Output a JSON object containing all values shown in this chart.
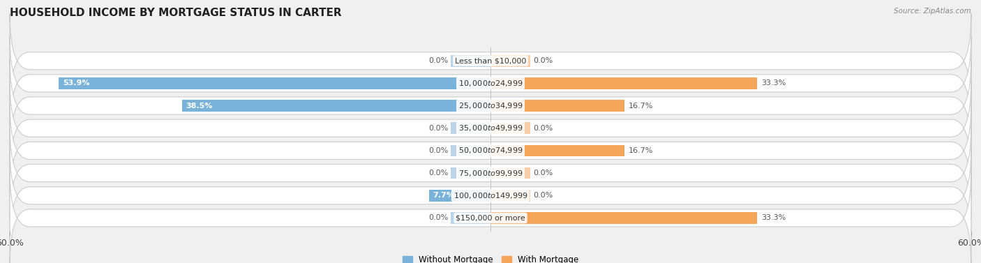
{
  "title": "HOUSEHOLD INCOME BY MORTGAGE STATUS IN CARTER",
  "source": "Source: ZipAtlas.com",
  "categories": [
    "Less than $10,000",
    "$10,000 to $24,999",
    "$25,000 to $34,999",
    "$35,000 to $49,999",
    "$50,000 to $74,999",
    "$75,000 to $99,999",
    "$100,000 to $149,999",
    "$150,000 or more"
  ],
  "without_mortgage": [
    0.0,
    53.9,
    38.5,
    0.0,
    0.0,
    0.0,
    7.7,
    0.0
  ],
  "with_mortgage": [
    0.0,
    33.3,
    16.7,
    0.0,
    16.7,
    0.0,
    0.0,
    33.3
  ],
  "color_without": "#7ab3d9",
  "color_with": "#f5a55a",
  "color_without_light": "#bcd4e8",
  "color_with_light": "#f9ceaa",
  "x_max": 60.0,
  "x_min": -60.0,
  "stub_value": 5.0,
  "legend_without": "Without Mortgage",
  "legend_with": "With Mortgage",
  "fig_bg": "#f0f0f0",
  "row_bg": "#efefef",
  "row_border": "#d8d8d8",
  "title_fontsize": 11,
  "label_fontsize": 8,
  "value_fontsize": 8,
  "axis_fontsize": 9
}
